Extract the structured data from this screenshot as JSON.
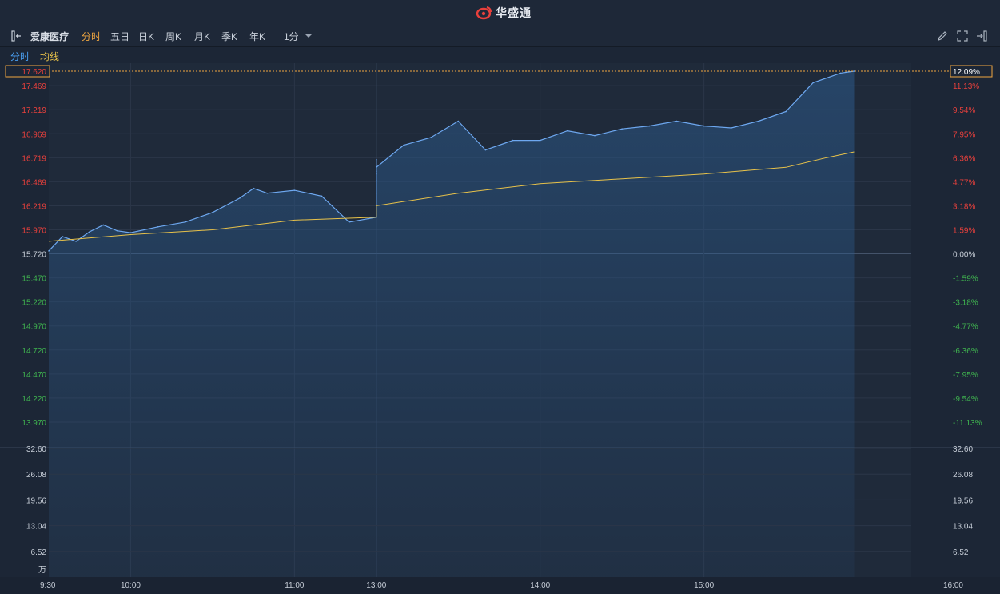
{
  "app": {
    "brand": "华盛通"
  },
  "toolbar": {
    "stock_name": "爱康医疗",
    "tabs": [
      "分时",
      "五日",
      "日K",
      "周K",
      "月K",
      "季K",
      "年K"
    ],
    "active_tab": "分时",
    "interval": "1分",
    "icons": [
      "draw-pencil-icon",
      "fullscreen-icon",
      "exit-icon"
    ]
  },
  "legend": {
    "series1": "分时",
    "series2": "均线"
  },
  "colors": {
    "price_line": "#6ea8f0",
    "avg_line": "#e8c24a",
    "up": "#e8403c",
    "down": "#3fb34f",
    "current_price": "#f0a640"
  },
  "chart_data": {
    "type": "line",
    "current_price": "17.620",
    "current_pct": "12.09%",
    "price_ticks_left": [
      "17.469",
      "17.219",
      "16.969",
      "16.719",
      "16.469",
      "16.219",
      "15.970",
      "15.720",
      "15.470",
      "15.220",
      "14.970",
      "14.720",
      "14.470",
      "14.220",
      "13.970"
    ],
    "pct_ticks_right": [
      "11.13%",
      "9.54%",
      "7.95%",
      "6.36%",
      "4.77%",
      "3.18%",
      "1.59%",
      "0.00%",
      "-1.59%",
      "-3.18%",
      "-4.77%",
      "-6.36%",
      "-7.95%",
      "-9.54%",
      "-11.13%"
    ],
    "ylim": [
      13.97,
      17.62
    ],
    "x_ticks": [
      "9:30",
      "10:00",
      "11:00",
      "13:00",
      "14:00",
      "15:00",
      "16:00"
    ],
    "price_series": [
      {
        "t": "9:30",
        "v": 15.75
      },
      {
        "t": "9:35",
        "v": 15.9
      },
      {
        "t": "9:40",
        "v": 15.85
      },
      {
        "t": "9:45",
        "v": 15.95
      },
      {
        "t": "9:50",
        "v": 16.02
      },
      {
        "t": "9:55",
        "v": 15.96
      },
      {
        "t": "10:00",
        "v": 15.94
      },
      {
        "t": "10:10",
        "v": 16.0
      },
      {
        "t": "10:20",
        "v": 16.05
      },
      {
        "t": "10:30",
        "v": 16.15
      },
      {
        "t": "10:40",
        "v": 16.3
      },
      {
        "t": "10:45",
        "v": 16.4
      },
      {
        "t": "10:50",
        "v": 16.35
      },
      {
        "t": "11:00",
        "v": 16.38
      },
      {
        "t": "11:10",
        "v": 16.32
      },
      {
        "t": "11:20",
        "v": 16.05
      },
      {
        "t": "11:30",
        "v": 16.1
      },
      {
        "t": "11:40",
        "v": 16.35
      },
      {
        "t": "11:50",
        "v": 16.55
      },
      {
        "t": "12:00",
        "v": 16.6
      },
      {
        "t": "12:10",
        "v": 16.48
      },
      {
        "t": "12:20",
        "v": 16.55
      },
      {
        "t": "12:30",
        "v": 16.58
      },
      {
        "t": "12:40",
        "v": 16.7
      },
      {
        "t": "13:00",
        "v": 16.62
      },
      {
        "t": "13:10",
        "v": 16.85
      },
      {
        "t": "13:20",
        "v": 16.93
      },
      {
        "t": "13:30",
        "v": 17.1
      },
      {
        "t": "13:40",
        "v": 16.8
      },
      {
        "t": "13:50",
        "v": 16.9
      },
      {
        "t": "14:00",
        "v": 16.9
      },
      {
        "t": "14:10",
        "v": 17.0
      },
      {
        "t": "14:20",
        "v": 16.95
      },
      {
        "t": "14:30",
        "v": 17.02
      },
      {
        "t": "14:40",
        "v": 17.05
      },
      {
        "t": "14:50",
        "v": 17.1
      },
      {
        "t": "15:00",
        "v": 17.05
      },
      {
        "t": "15:10",
        "v": 17.03
      },
      {
        "t": "15:20",
        "v": 17.1
      },
      {
        "t": "15:30",
        "v": 17.2
      },
      {
        "t": "15:40",
        "v": 17.5
      },
      {
        "t": "15:50",
        "v": 17.6
      },
      {
        "t": "15:55",
        "v": 17.62
      }
    ],
    "avg_series": [
      {
        "t": "9:30",
        "v": 15.85
      },
      {
        "t": "10:00",
        "v": 15.92
      },
      {
        "t": "10:30",
        "v": 15.97
      },
      {
        "t": "11:00",
        "v": 16.07
      },
      {
        "t": "11:30",
        "v": 16.1
      },
      {
        "t": "12:00",
        "v": 16.17
      },
      {
        "t": "13:00",
        "v": 16.22
      },
      {
        "t": "13:30",
        "v": 16.35
      },
      {
        "t": "14:00",
        "v": 16.45
      },
      {
        "t": "14:30",
        "v": 16.5
      },
      {
        "t": "15:00",
        "v": 16.55
      },
      {
        "t": "15:30",
        "v": 16.62
      },
      {
        "t": "15:45",
        "v": 16.72
      },
      {
        "t": "15:55",
        "v": 16.78
      }
    ],
    "volume_ticks": [
      "32.60",
      "26.08",
      "19.56",
      "13.04",
      "6.52"
    ],
    "volume_unit": "万",
    "volume_ylim": [
      0,
      32.6
    ]
  }
}
